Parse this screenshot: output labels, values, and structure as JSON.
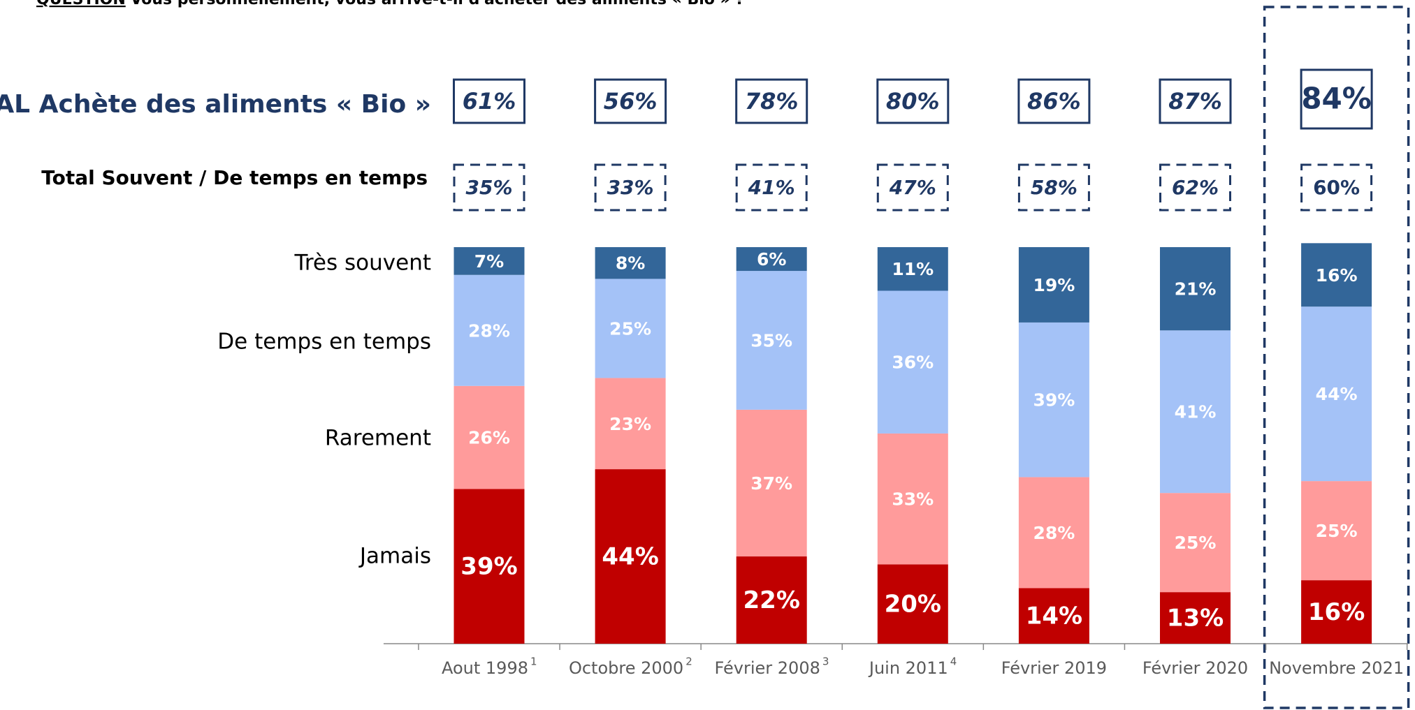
{
  "chart_data": {
    "type": "stacked_bar",
    "question_label": "QUESTION",
    "question": ": Vous personnellement, vous arrive-t-il d'acheter des aliments « Bio » ?",
    "categories": [
      "Aout 1998",
      "Octobre 2000",
      "Février 2008",
      "Juin 2011",
      "Février 2019",
      "Février 2020",
      "Novembre 2021"
    ],
    "category_notes": [
      "1",
      "2",
      "3",
      "4",
      null,
      null,
      null
    ],
    "highlight_index": 6,
    "ylim": [
      0,
      100
    ],
    "totals": {
      "label": "TOTAL Achète des aliments « Bio »",
      "values": [
        61,
        56,
        78,
        80,
        86,
        87,
        84
      ],
      "value_labels": [
        "61%",
        "56%",
        "78%",
        "80%",
        "86%",
        "87%",
        "84%"
      ]
    },
    "souvent": {
      "label": "Total Souvent / De temps en temps",
      "values": [
        35,
        33,
        41,
        47,
        58,
        62,
        60
      ],
      "value_labels": [
        "35%",
        "33%",
        "41%",
        "47%",
        "58%",
        "62%",
        "60%"
      ]
    },
    "series": [
      {
        "name": "Jamais",
        "color": "#c00000",
        "values": [
          39,
          44,
          22,
          20,
          14,
          13,
          16
        ],
        "value_labels": [
          "39%",
          "44%",
          "22%",
          "20%",
          "14%",
          "13%",
          "16%"
        ]
      },
      {
        "name": "Rarement",
        "color": "#ff9b9b",
        "values": [
          26,
          23,
          37,
          33,
          28,
          25,
          25
        ],
        "value_labels": [
          "26%",
          "23%",
          "37%",
          "33%",
          "28%",
          "25%",
          "25%"
        ]
      },
      {
        "name": "De temps en temps",
        "color": "#a4c2f7",
        "values": [
          28,
          25,
          35,
          36,
          39,
          41,
          44
        ],
        "value_labels": [
          "28%",
          "25%",
          "35%",
          "36%",
          "39%",
          "41%",
          "44%"
        ]
      },
      {
        "name": "Très souvent",
        "color": "#336699",
        "values": [
          7,
          8,
          6,
          11,
          19,
          21,
          16
        ],
        "value_labels": [
          "7%",
          "8%",
          "6%",
          "11%",
          "19%",
          "21%",
          "16%"
        ]
      }
    ]
  }
}
